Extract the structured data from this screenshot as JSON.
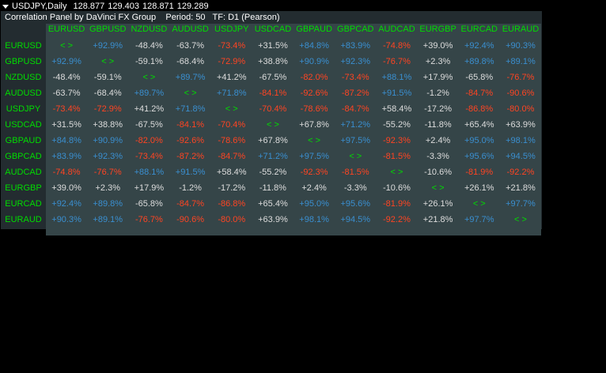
{
  "header": {
    "symbol": "USDJPY,Daily",
    "prices": [
      "128.877",
      "129.403",
      "128.871",
      "129.289"
    ]
  },
  "panel": {
    "title": "Correlation Panel by DaVinci FX Group",
    "period": "Period: 50",
    "timeframe": "TF: D1 (Pearson)"
  },
  "colors": {
    "positive_strong": "#3a8fd0",
    "negative_strong": "#ff4422",
    "neutral": "#dddddd",
    "self": "#00dd00",
    "header": "#00dd00",
    "panel_bg": "#232c30",
    "grid_bg": "#354548"
  },
  "pairs": [
    "EURUSD",
    "GBPUSD",
    "NZDUSD",
    "AUDUSD",
    "USDJPY",
    "USDCAD",
    "GBPAUD",
    "GBPCAD",
    "AUDCAD",
    "EURGBP",
    "EURCAD",
    "EURAUD"
  ],
  "self_marker": "< >",
  "matrix": [
    [
      "< >",
      "+92.9%",
      "-48.4%",
      "-63.7%",
      "-73.4%",
      "+31.5%",
      "+84.8%",
      "+83.9%",
      "-74.8%",
      "+39.0%",
      "+92.4%",
      "+90.3%"
    ],
    [
      "+92.9%",
      "< >",
      "-59.1%",
      "-68.4%",
      "-72.9%",
      "+38.8%",
      "+90.9%",
      "+92.3%",
      "-76.7%",
      "+2.3%",
      "+89.8%",
      "+89.1%"
    ],
    [
      "-48.4%",
      "-59.1%",
      "< >",
      "+89.7%",
      "+41.2%",
      "-67.5%",
      "-82.0%",
      "-73.4%",
      "+88.1%",
      "+17.9%",
      "-65.8%",
      "-76.7%"
    ],
    [
      "-63.7%",
      "-68.4%",
      "+89.7%",
      "< >",
      "+71.8%",
      "-84.1%",
      "-92.6%",
      "-87.2%",
      "+91.5%",
      "-1.2%",
      "-84.7%",
      "-90.6%"
    ],
    [
      "-73.4%",
      "-72.9%",
      "+41.2%",
      "+71.8%",
      "< >",
      "-70.4%",
      "-78.6%",
      "-84.7%",
      "+58.4%",
      "-17.2%",
      "-86.8%",
      "-80.0%"
    ],
    [
      "+31.5%",
      "+38.8%",
      "-67.5%",
      "-84.1%",
      "-70.4%",
      "< >",
      "+67.8%",
      "+71.2%",
      "-55.2%",
      "-11.8%",
      "+65.4%",
      "+63.9%"
    ],
    [
      "+84.8%",
      "+90.9%",
      "-82.0%",
      "-92.6%",
      "-78.6%",
      "+67.8%",
      "< >",
      "+97.5%",
      "-92.3%",
      "+2.4%",
      "+95.0%",
      "+98.1%"
    ],
    [
      "+83.9%",
      "+92.3%",
      "-73.4%",
      "-87.2%",
      "-84.7%",
      "+71.2%",
      "+97.5%",
      "< >",
      "-81.5%",
      "-3.3%",
      "+95.6%",
      "+94.5%"
    ],
    [
      "-74.8%",
      "-76.7%",
      "+88.1%",
      "+91.5%",
      "+58.4%",
      "-55.2%",
      "-92.3%",
      "-81.5%",
      "< >",
      "-10.6%",
      "-81.9%",
      "-92.2%"
    ],
    [
      "+39.0%",
      "+2.3%",
      "+17.9%",
      "-1.2%",
      "-17.2%",
      "-11.8%",
      "+2.4%",
      "-3.3%",
      "-10.6%",
      "< >",
      "+26.1%",
      "+21.8%"
    ],
    [
      "+92.4%",
      "+89.8%",
      "-65.8%",
      "-84.7%",
      "-86.8%",
      "+65.4%",
      "+95.0%",
      "+95.6%",
      "-81.9%",
      "+26.1%",
      "< >",
      "+97.7%"
    ],
    [
      "+90.3%",
      "+89.1%",
      "-76.7%",
      "-90.6%",
      "-80.0%",
      "+63.9%",
      "+98.1%",
      "+94.5%",
      "-92.2%",
      "+21.8%",
      "+97.7%",
      "< >"
    ]
  ]
}
